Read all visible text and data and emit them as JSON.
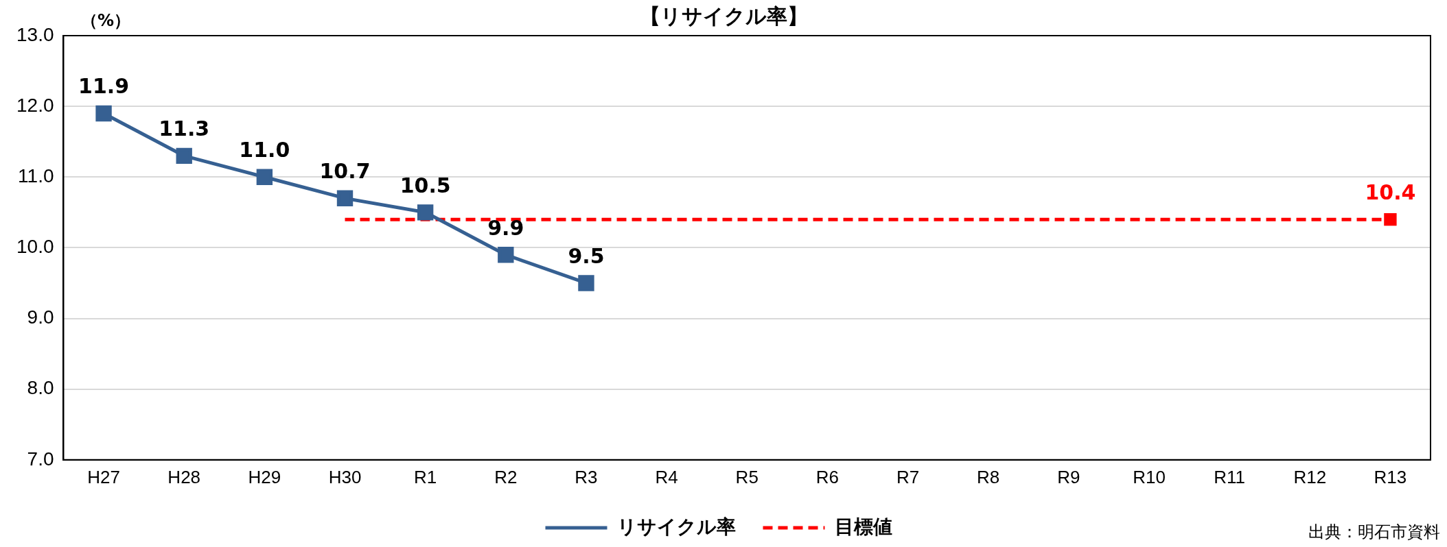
{
  "chart_data": {
    "type": "line",
    "title": "【リサイクル率】",
    "ylabel": "（%）",
    "categories": [
      "H27",
      "H28",
      "H29",
      "H30",
      "R1",
      "R2",
      "R3",
      "R4",
      "R5",
      "R6",
      "R7",
      "R8",
      "R9",
      "R10",
      "R11",
      "R12",
      "R13"
    ],
    "series": [
      {
        "name": "リサイクル率",
        "color": "#366092",
        "marker": "square",
        "line_style": "solid",
        "values": [
          11.9,
          11.3,
          11.0,
          10.7,
          10.5,
          9.9,
          9.5,
          null,
          null,
          null,
          null,
          null,
          null,
          null,
          null,
          null,
          null
        ],
        "value_labels": [
          "11.9",
          "11.3",
          "11.0",
          "10.7",
          "10.5",
          "9.9",
          "9.5",
          null,
          null,
          null,
          null,
          null,
          null,
          null,
          null,
          null,
          null
        ]
      },
      {
        "name": "目標値",
        "color": "#ff0000",
        "marker": "none",
        "line_style": "dashed",
        "values": [
          null,
          null,
          null,
          10.4,
          10.4,
          10.4,
          10.4,
          10.4,
          10.4,
          10.4,
          10.4,
          10.4,
          10.4,
          10.4,
          10.4,
          10.4,
          10.4
        ]
      },
      {
        "type": "scatter",
        "color": "#ff0000",
        "marker": "square",
        "values": [
          null,
          null,
          null,
          null,
          null,
          null,
          null,
          null,
          null,
          null,
          null,
          null,
          null,
          null,
          null,
          null,
          10.4
        ],
        "value_labels": [
          null,
          null,
          null,
          null,
          null,
          null,
          null,
          null,
          null,
          null,
          null,
          null,
          null,
          null,
          null,
          null,
          "10.4"
        ]
      }
    ],
    "ylim": [
      7,
      13
    ],
    "yticks": [
      {
        "value": 7,
        "label": "7.0"
      },
      {
        "value": 8,
        "label": "8.0"
      },
      {
        "value": 9,
        "label": "9.0"
      },
      {
        "value": 10,
        "label": "10.0"
      },
      {
        "value": 11,
        "label": "11.0"
      },
      {
        "value": 12,
        "label": "12.0"
      },
      {
        "value": 13,
        "label": "13.0"
      }
    ],
    "grid": "y",
    "legend": "bottom",
    "annotations": [
      "出典：明石市資料"
    ]
  }
}
